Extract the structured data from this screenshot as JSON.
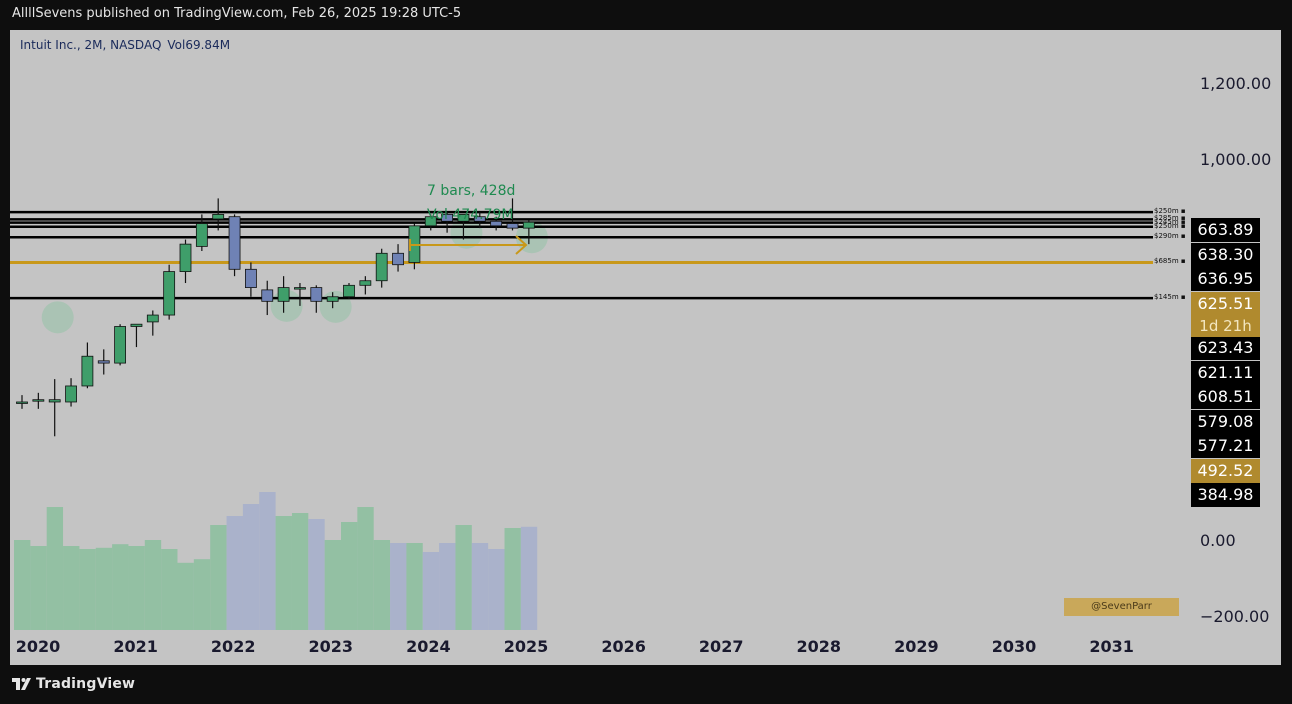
{
  "header": {
    "publish_text": "AllllSevens published on TradingView.com, Feb 26, 2025 19:28 UTC-5"
  },
  "symbol": {
    "name": "Intuit Inc., 2M, NASDAQ",
    "volume": "Vol69.84M"
  },
  "footer": {
    "brand": "TradingView"
  },
  "watermark": "@SevenParr",
  "measure": {
    "bars_text": "7 bars, 428d",
    "vol_text": "Vol 474.79M"
  },
  "price_tags": [
    {
      "value": "663.89",
      "style": "black"
    },
    {
      "value": "638.30",
      "style": "black"
    },
    {
      "value": "636.95",
      "style": "black"
    },
    {
      "value": "625.51",
      "style": "gold"
    },
    {
      "value": "623.43",
      "style": "black"
    },
    {
      "value": "621.11",
      "style": "black"
    },
    {
      "value": "608.51",
      "style": "black"
    },
    {
      "value": "579.08",
      "style": "black"
    },
    {
      "value": "577.21",
      "style": "black"
    },
    {
      "value": "492.52",
      "style": "gold"
    },
    {
      "value": "384.98",
      "style": "black"
    }
  ],
  "countdown": "1d 21h",
  "y_axis_labels": [
    "1,200.00",
    "1,000.00",
    "0.00",
    "−200.00"
  ],
  "level_labels": [
    "$250m",
    "$285m",
    "$245m",
    "$250m",
    "$290m",
    "$685m",
    "$145m"
  ],
  "colors": {
    "up": "#3f9e6a",
    "down": "#6f82b5",
    "level_line": "#000000",
    "gold_line": "#c8981a",
    "measure_arrow": "#c8981a",
    "measure_text": "#1f8a50"
  },
  "chart_data": {
    "type": "candlestick",
    "timeframe": "2M",
    "x_tick_labels": [
      "2020",
      "2021",
      "2022",
      "2023",
      "2024",
      "2025",
      "2026",
      "2027",
      "2028",
      "2029",
      "2030",
      "2031"
    ],
    "candles": [
      {
        "o": 270,
        "h": 285,
        "l": 255,
        "c": 270
      },
      {
        "o": 275,
        "h": 290,
        "l": 255,
        "c": 275
      },
      {
        "o": 270,
        "h": 320,
        "l": 195,
        "c": 275
      },
      {
        "o": 270,
        "h": 322,
        "l": 260,
        "c": 305
      },
      {
        "o": 305,
        "h": 400,
        "l": 300,
        "c": 370
      },
      {
        "o": 360,
        "h": 385,
        "l": 330,
        "c": 355
      },
      {
        "o": 355,
        "h": 440,
        "l": 350,
        "c": 435
      },
      {
        "o": 435,
        "h": 440,
        "l": 390,
        "c": 440
      },
      {
        "o": 445,
        "h": 470,
        "l": 415,
        "c": 460
      },
      {
        "o": 460,
        "h": 570,
        "l": 450,
        "c": 555
      },
      {
        "o": 555,
        "h": 625,
        "l": 530,
        "c": 615
      },
      {
        "o": 610,
        "h": 680,
        "l": 600,
        "c": 660
      },
      {
        "o": 670,
        "h": 715,
        "l": 645,
        "c": 680
      },
      {
        "o": 675,
        "h": 680,
        "l": 545,
        "c": 560
      },
      {
        "o": 560,
        "h": 575,
        "l": 500,
        "c": 520
      },
      {
        "o": 515,
        "h": 535,
        "l": 460,
        "c": 490
      },
      {
        "o": 490,
        "h": 545,
        "l": 465,
        "c": 520
      },
      {
        "o": 520,
        "h": 530,
        "l": 480,
        "c": 520
      },
      {
        "o": 520,
        "h": 525,
        "l": 465,
        "c": 490
      },
      {
        "o": 490,
        "h": 510,
        "l": 475,
        "c": 500
      },
      {
        "o": 500,
        "h": 530,
        "l": 495,
        "c": 525
      },
      {
        "o": 525,
        "h": 545,
        "l": 505,
        "c": 535
      },
      {
        "o": 535,
        "h": 605,
        "l": 520,
        "c": 595
      },
      {
        "o": 595,
        "h": 615,
        "l": 555,
        "c": 570
      },
      {
        "o": 575,
        "h": 660,
        "l": 560,
        "c": 655
      },
      {
        "o": 655,
        "h": 680,
        "l": 645,
        "c": 675
      },
      {
        "o": 680,
        "h": 685,
        "l": 640,
        "c": 665
      },
      {
        "o": 665,
        "h": 680,
        "l": 625,
        "c": 680
      },
      {
        "o": 675,
        "h": 685,
        "l": 650,
        "c": 665
      },
      {
        "o": 665,
        "h": 675,
        "l": 645,
        "c": 655
      },
      {
        "o": 660,
        "h": 715,
        "l": 645,
        "c": 650
      },
      {
        "o": 650,
        "h": 668,
        "l": 615,
        "c": 663
      }
    ],
    "volume": [
      150,
      140,
      205,
      140,
      135,
      137,
      143,
      140,
      150,
      135,
      112,
      118,
      175,
      190,
      210,
      230,
      190,
      195,
      185,
      150,
      180,
      205,
      150,
      145,
      145,
      130,
      145,
      175,
      145,
      135,
      170,
      172
    ],
    "volume_colors": [
      "up",
      "up",
      "up",
      "up",
      "up",
      "up",
      "up",
      "up",
      "up",
      "up",
      "up",
      "up",
      "up",
      "down",
      "down",
      "down",
      "up",
      "up",
      "down",
      "up",
      "up",
      "up",
      "up",
      "down",
      "up",
      "down",
      "down",
      "up",
      "down",
      "down",
      "up",
      "down"
    ],
    "horizontal_levels": [
      {
        "price": 685,
        "label": "$250m",
        "color": "black"
      },
      {
        "price": 669,
        "label": "$285m",
        "color": "black"
      },
      {
        "price": 662,
        "label": "$245m",
        "color": "black"
      },
      {
        "price": 653,
        "label": "$250m",
        "color": "black"
      },
      {
        "price": 630,
        "label": "$290m",
        "color": "black"
      },
      {
        "price": 575,
        "label": "$685m",
        "color": "gold"
      },
      {
        "price": 497,
        "label": "$145m",
        "color": "black"
      }
    ],
    "y_axis_ticks": [
      1200,
      1000,
      0,
      -200
    ],
    "ylim": [
      -220,
      1270
    ]
  }
}
